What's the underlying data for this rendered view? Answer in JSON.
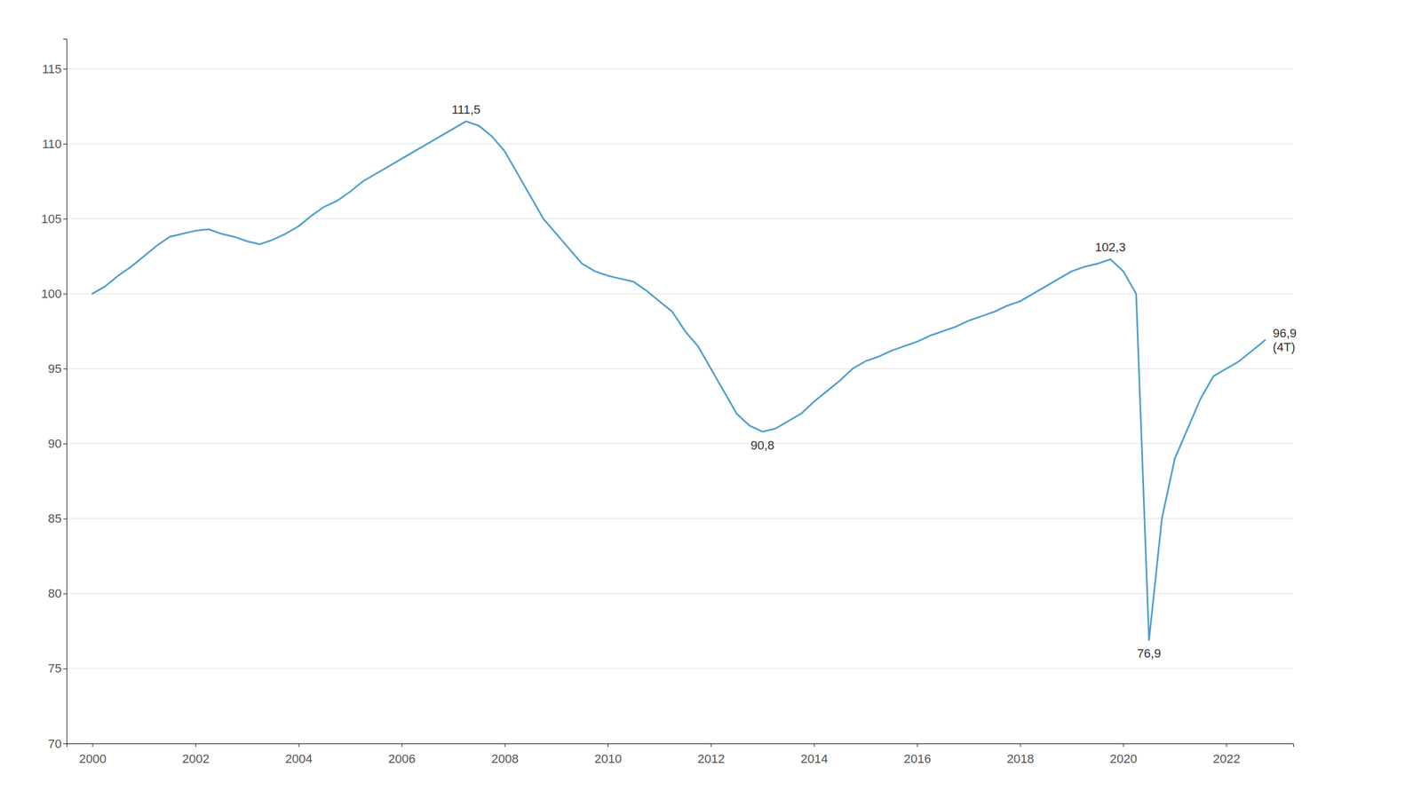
{
  "chart_data": {
    "type": "line",
    "color": "#4e9fce",
    "grid": "y",
    "xlim": [
      1999.5,
      2023.3
    ],
    "xticks": [
      2000,
      2002,
      2004,
      2006,
      2008,
      2010,
      2012,
      2014,
      2016,
      2018,
      2020,
      2022
    ],
    "ylim": [
      70,
      117
    ],
    "yticks": [
      70,
      75,
      80,
      85,
      90,
      95,
      100,
      105,
      110,
      115
    ],
    "x": [
      2000.0,
      2000.25,
      2000.5,
      2000.75,
      2001.0,
      2001.25,
      2001.5,
      2001.75,
      2002.0,
      2002.25,
      2002.5,
      2002.75,
      2003.0,
      2003.25,
      2003.5,
      2003.75,
      2004.0,
      2004.25,
      2004.5,
      2004.75,
      2005.0,
      2005.25,
      2005.5,
      2005.75,
      2006.0,
      2006.25,
      2006.5,
      2006.75,
      2007.0,
      2007.25,
      2007.5,
      2007.75,
      2008.0,
      2008.25,
      2008.5,
      2008.75,
      2009.0,
      2009.25,
      2009.5,
      2009.75,
      2010.0,
      2010.25,
      2010.5,
      2010.75,
      2011.0,
      2011.25,
      2011.5,
      2011.75,
      2012.0,
      2012.25,
      2012.5,
      2012.75,
      2013.0,
      2013.25,
      2013.5,
      2013.75,
      2014.0,
      2014.25,
      2014.5,
      2014.75,
      2015.0,
      2015.25,
      2015.5,
      2015.75,
      2016.0,
      2016.25,
      2016.5,
      2016.75,
      2017.0,
      2017.25,
      2017.5,
      2017.75,
      2018.0,
      2018.25,
      2018.5,
      2018.75,
      2019.0,
      2019.25,
      2019.5,
      2019.75,
      2020.0,
      2020.25,
      2020.5,
      2020.75,
      2021.0,
      2021.25,
      2021.5,
      2021.75,
      2022.0,
      2022.25,
      2022.5,
      2022.75
    ],
    "values": [
      100.0,
      100.5,
      101.2,
      101.8,
      102.5,
      103.2,
      103.8,
      104.0,
      104.2,
      104.3,
      104.0,
      103.8,
      103.5,
      103.3,
      103.6,
      104.0,
      104.5,
      105.2,
      105.8,
      106.2,
      106.8,
      107.5,
      108.0,
      108.5,
      109.0,
      109.5,
      110.0,
      110.5,
      111.0,
      111.5,
      111.2,
      110.5,
      109.5,
      108.0,
      106.5,
      105.0,
      104.0,
      103.0,
      102.0,
      101.5,
      101.2,
      101.0,
      100.8,
      100.2,
      99.5,
      98.8,
      97.5,
      96.5,
      95.0,
      93.5,
      92.0,
      91.2,
      90.8,
      91.0,
      91.5,
      92.0,
      92.8,
      93.5,
      94.2,
      95.0,
      95.5,
      95.8,
      96.2,
      96.5,
      96.8,
      97.2,
      97.5,
      97.8,
      98.2,
      98.5,
      98.8,
      99.2,
      99.5,
      100.0,
      100.5,
      101.0,
      101.5,
      101.8,
      102.0,
      102.3,
      101.5,
      100.0,
      76.9,
      85.0,
      89.0,
      91.0,
      93.0,
      94.5,
      95.0,
      95.5,
      96.2,
      96.9
    ],
    "annotations": [
      {
        "text": "111,5",
        "x": 2007.25,
        "y": 111.5
      },
      {
        "text": "90,8",
        "x": 2013.0,
        "y": 90.8
      },
      {
        "text": "102,3",
        "x": 2019.75,
        "y": 102.3
      },
      {
        "text": "76,9",
        "x": 2020.5,
        "y": 76.9
      },
      {
        "text": "96,9\n(4T)",
        "x": 2022.75,
        "y": 96.9
      }
    ]
  }
}
